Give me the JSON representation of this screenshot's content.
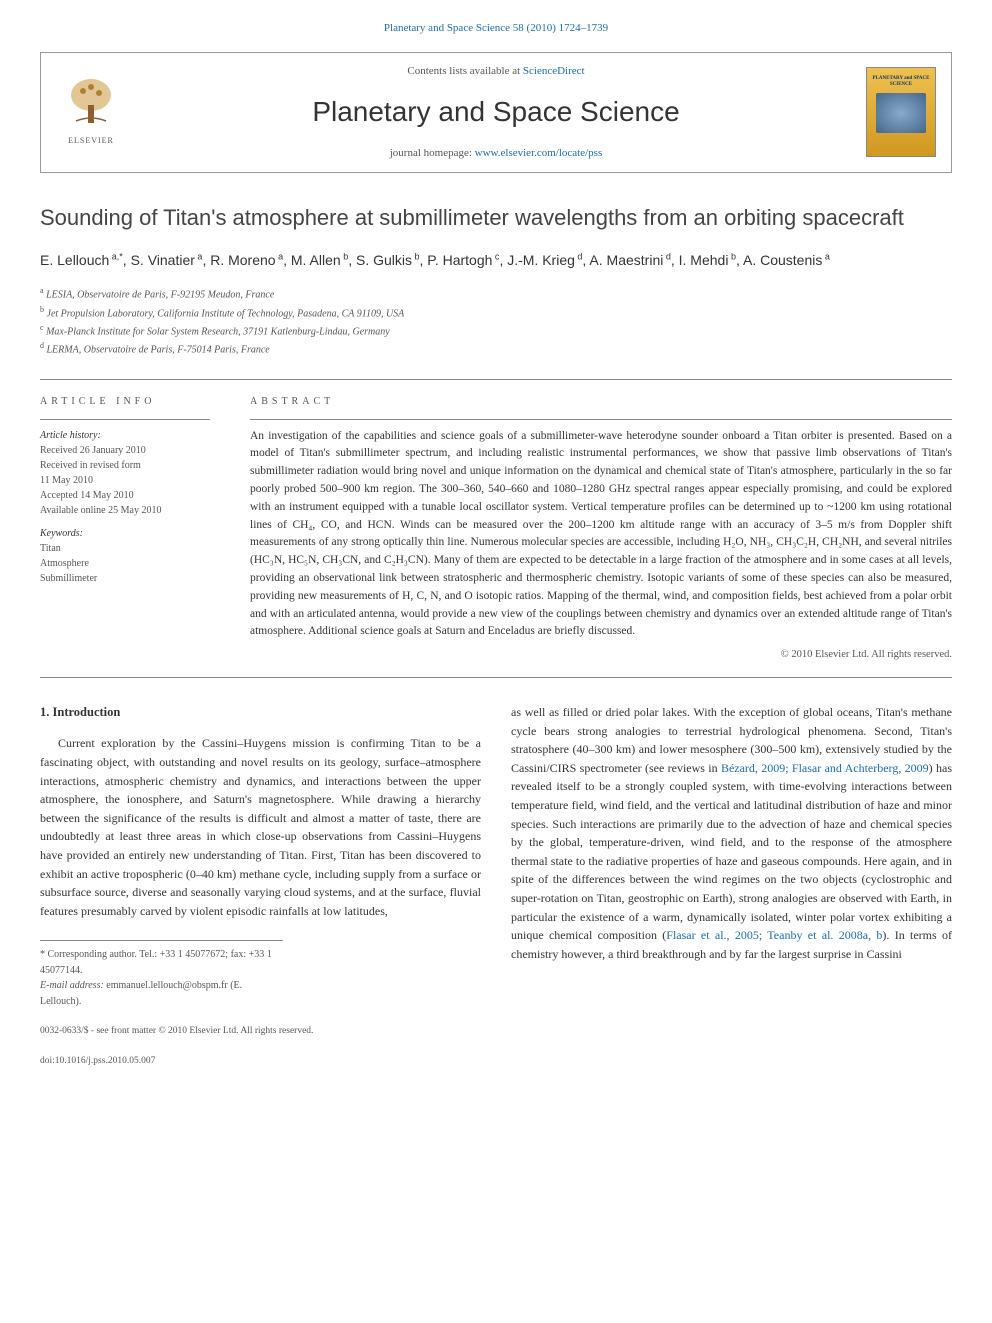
{
  "top_link": {
    "text": "Planetary and Space Science 58 (2010) 1724–1739"
  },
  "header": {
    "contents_prefix": "Contents lists available at ",
    "contents_link": "ScienceDirect",
    "journal_name": "Planetary and Space Science",
    "homepage_prefix": "journal homepage: ",
    "homepage_link": "www.elsevier.com/locate/pss",
    "elsevier_label": "ELSEVIER",
    "cover_title": "PLANETARY and SPACE SCIENCE"
  },
  "article": {
    "title": "Sounding of Titan's atmosphere at submillimeter wavelengths from an orbiting spacecraft",
    "authors_html": "E. Lellouch<sup> a,*</sup>, S. Vinatier<sup> a</sup>, R. Moreno<sup> a</sup>, M. Allen<sup> b</sup>, S. Gulkis<sup> b</sup>, P. Hartogh<sup> c</sup>, J.-M. Krieg<sup> d</sup>, A. Maestrini<sup> d</sup>, I. Mehdi<sup> b</sup>, A. Coustenis<sup> a</sup>",
    "affiliations": [
      {
        "sup": "a",
        "text": "LESIA, Observatoire de Paris, F-92195 Meudon, France"
      },
      {
        "sup": "b",
        "text": "Jet Propulsion Laboratory, California Institute of Technology, Pasadena, CA 91109, USA"
      },
      {
        "sup": "c",
        "text": "Max-Planck Institute for Solar System Research, 37191 Katlenburg-Lindau, Germany"
      },
      {
        "sup": "d",
        "text": "LERMA, Observatoire de Paris, F-75014 Paris, France"
      }
    ]
  },
  "article_info": {
    "heading": "ARTICLE INFO",
    "history_label": "Article history:",
    "history": [
      "Received 26 January 2010",
      "Received in revised form",
      "11 May 2010",
      "Accepted 14 May 2010",
      "Available online 25 May 2010"
    ],
    "keywords_label": "Keywords:",
    "keywords": [
      "Titan",
      "Atmosphere",
      "Submillimeter"
    ]
  },
  "abstract": {
    "heading": "ABSTRACT",
    "text": "An investigation of the capabilities and science goals of a submillimeter-wave heterodyne sounder onboard a Titan orbiter is presented. Based on a model of Titan's submillimeter spectrum, and including realistic instrumental performances, we show that passive limb observations of Titan's submillimeter radiation would bring novel and unique information on the dynamical and chemical state of Titan's atmosphere, particularly in the so far poorly probed 500–900 km region. The 300–360, 540–660 and 1080–1280 GHz spectral ranges appear especially promising, and could be explored with an instrument equipped with a tunable local oscillator system. Vertical temperature profiles can be determined up to ~1200 km using rotational lines of CH₄, CO, and HCN. Winds can be measured over the 200–1200 km altitude range with an accuracy of 3–5 m/s from Doppler shift measurements of any strong optically thin line. Numerous molecular species are accessible, including H₂O, NH₃, CH₃C₂H, CH₂NH, and several nitriles (HC₃N, HC₅N, CH₃CN, and C₂H₃CN). Many of them are expected to be detectable in a large fraction of the atmosphere and in some cases at all levels, providing an observational link between stratospheric and thermospheric chemistry. Isotopic variants of some of these species can also be measured, providing new measurements of H, C, N, and O isotopic ratios. Mapping of the thermal, wind, and composition fields, best achieved from a polar orbit and with an articulated antenna, would provide a new view of the couplings between chemistry and dynamics over an extended altitude range of Titan's atmosphere. Additional science goals at Saturn and Enceladus are briefly discussed.",
    "copyright": "© 2010 Elsevier Ltd. All rights reserved."
  },
  "body": {
    "section_heading": "1. Introduction",
    "col1_p1": "Current exploration by the Cassini–Huygens mission is confirming Titan to be a fascinating object, with outstanding and novel results on its geology, surface–atmosphere interactions, atmospheric chemistry and dynamics, and interactions between the upper atmosphere, the ionosphere, and Saturn's magnetosphere. While drawing a hierarchy between the significance of the results is difficult and almost a matter of taste, there are undoubtedly at least three areas in which close-up observations from Cassini–Huygens have provided an entirely new understanding of Titan. First, Titan has been discovered to exhibit an active tropospheric (0–40 km) methane cycle, including supply from a surface or subsurface source, diverse and seasonally varying cloud systems, and at the surface, fluvial features presumably carved by violent episodic rainfalls at low latitudes,",
    "col2_p1_pre": "as well as filled or dried polar lakes. With the exception of global oceans, Titan's methane cycle bears strong analogies to terrestrial hydrological phenomena. Second, Titan's stratosphere (40–300 km) and lower mesosphere (300–500 km), extensively studied by the Cassini/CIRS spectrometer (see reviews in ",
    "col2_link1": "Bézard, 2009; Flasar and Achterberg, 2009",
    "col2_p1_mid": ") has revealed itself to be a strongly coupled system, with time-evolving interactions between temperature field, wind field, and the vertical and latitudinal distribution of haze and minor species. Such interactions are primarily due to the advection of haze and chemical species by the global, temperature-driven, wind field, and to the response of the atmosphere thermal state to the radiative properties of haze and gaseous compounds. Here again, and in spite of the differences between the wind regimes on the two objects (cyclostrophic and super-rotation on Titan, geostrophic on Earth), strong analogies are observed with Earth, in particular the existence of a warm, dynamically isolated, winter polar vortex exhibiting a unique chemical composition (",
    "col2_link2": "Flasar et al., 2005; Teanby et al. 2008a, b",
    "col2_p1_post": "). In terms of chemistry however, a third breakthrough and by far the largest surprise in Cassini"
  },
  "footnote": {
    "corresponding": "* Corresponding author. Tel.: +33 1 45077672; fax: +33 1 45077144.",
    "email_label": "E-mail address:",
    "email": "emmanuel.lellouch@obspm.fr (E. Lellouch)."
  },
  "footer": {
    "line1": "0032-0633/$ - see front matter © 2010 Elsevier Ltd. All rights reserved.",
    "line2": "doi:10.1016/j.pss.2010.05.007"
  },
  "colors": {
    "link": "#1a6bb0",
    "text": "#333333",
    "muted": "#555555",
    "border": "#888888",
    "cover_grad_top": "#f0c050",
    "cover_grad_bot": "#d09820"
  },
  "typography": {
    "body_fontsize_pt": 10,
    "title_fontsize_pt": 17,
    "journal_name_fontsize_pt": 21,
    "authors_fontsize_pt": 11,
    "abstract_fontsize_pt": 9,
    "info_fontsize_pt": 8
  }
}
